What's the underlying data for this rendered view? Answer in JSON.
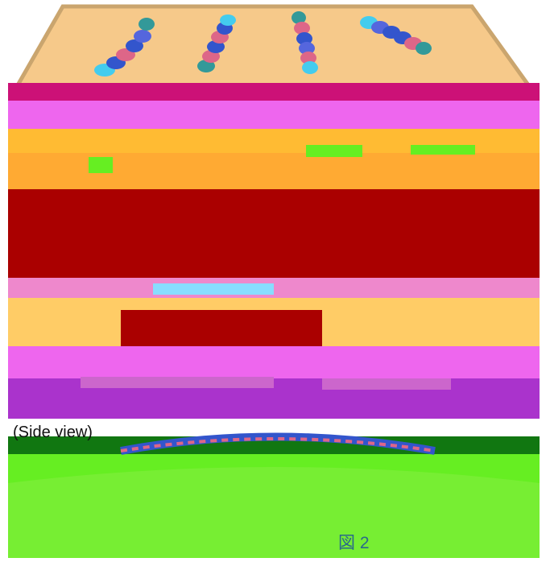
{
  "labels": {
    "side_view": "(Side view)",
    "figure_label": "図 2"
  },
  "colors": {
    "tray_fill": "#f6c98a",
    "tray_rim": "#caa56e",
    "band_magenta": "#ee66ee",
    "band_crimson": "#aa0000",
    "band_orange": "#ffbb33",
    "band_purple": "#aa33cc",
    "band_green": "#66ee22",
    "band_darkgreen": "#117711",
    "bead_blue": "#3355cc",
    "bead_pink": "#dd6688",
    "bead_cyan": "#44ccee",
    "bead_teal": "#339999"
  },
  "figure": {
    "top_panel": "top-view-illustration",
    "middle_panel": "corrupted-stripe-region",
    "bottom_panel": "side-view-illustration"
  }
}
